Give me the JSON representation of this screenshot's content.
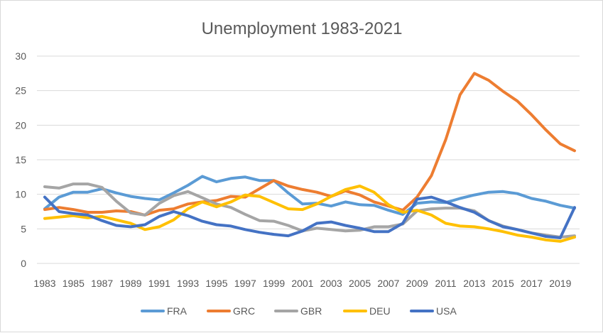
{
  "chart_data": {
    "type": "line",
    "title": "Unemployment 1983-2021",
    "xlabel": "",
    "ylabel": "",
    "ylim": [
      0,
      30
    ],
    "yticks": [
      0,
      5,
      10,
      15,
      20,
      25,
      30
    ],
    "grid": "horizontal",
    "legend": "bottom",
    "x": [
      1983,
      1984,
      1985,
      1986,
      1987,
      1988,
      1989,
      1990,
      1991,
      1992,
      1993,
      1994,
      1995,
      1996,
      1997,
      1998,
      1999,
      2000,
      2001,
      2002,
      2003,
      2004,
      2005,
      2006,
      2007,
      2008,
      2009,
      2010,
      2011,
      2012,
      2013,
      2014,
      2015,
      2016,
      2017,
      2018,
      2019,
      2020
    ],
    "xtick_labels": [
      "1983",
      "1985",
      "1987",
      "1989",
      "1991",
      "1993",
      "1995",
      "1997",
      "1999",
      "2001",
      "2003",
      "2005",
      "2007",
      "2009",
      "2011",
      "2013",
      "2015",
      "2017",
      "2019"
    ],
    "series": [
      {
        "name": "FRA",
        "color": "#5b9bd5",
        "values": [
          7.9,
          9.6,
          10.3,
          10.3,
          10.8,
          10.2,
          9.7,
          9.4,
          9.2,
          10.2,
          11.3,
          12.6,
          11.8,
          12.3,
          12.5,
          12.0,
          12.0,
          10.2,
          8.6,
          8.7,
          8.3,
          8.9,
          8.5,
          8.4,
          7.7,
          7.1,
          8.7,
          8.9,
          8.8,
          9.4,
          9.9,
          10.3,
          10.4,
          10.1,
          9.4,
          9.0,
          8.4,
          8.0
        ]
      },
      {
        "name": "GRC",
        "color": "#ed7d31",
        "values": [
          7.8,
          8.1,
          7.8,
          7.4,
          7.4,
          7.6,
          7.5,
          7.0,
          7.7,
          7.9,
          8.6,
          8.9,
          9.1,
          9.7,
          9.6,
          10.8,
          12.0,
          11.2,
          10.7,
          10.3,
          9.7,
          10.5,
          9.9,
          8.9,
          8.3,
          7.7,
          9.6,
          12.7,
          17.9,
          24.4,
          27.5,
          26.5,
          24.9,
          23.5,
          21.5,
          19.3,
          17.3,
          16.3
        ]
      },
      {
        "name": "GBR",
        "color": "#a5a5a5",
        "values": [
          11.1,
          10.9,
          11.5,
          11.5,
          11.0,
          9.0,
          7.3,
          7.0,
          8.7,
          9.8,
          10.4,
          9.5,
          8.6,
          8.1,
          7.1,
          6.2,
          6.1,
          5.5,
          4.7,
          5.1,
          4.9,
          4.7,
          4.8,
          5.3,
          5.3,
          5.7,
          7.6,
          7.9,
          8.0,
          8.0,
          7.6,
          6.2,
          5.4,
          4.9,
          4.4,
          4.1,
          3.8,
          4.0
        ]
      },
      {
        "name": "DEU",
        "color": "#ffc000",
        "values": [
          6.5,
          6.7,
          6.9,
          6.6,
          6.8,
          6.3,
          5.8,
          4.9,
          5.3,
          6.3,
          7.9,
          8.9,
          8.2,
          8.9,
          9.9,
          9.7,
          8.8,
          7.9,
          7.8,
          8.6,
          9.7,
          10.7,
          11.2,
          10.3,
          8.5,
          7.4,
          7.7,
          7.0,
          5.8,
          5.4,
          5.3,
          5.0,
          4.6,
          4.1,
          3.8,
          3.4,
          3.2,
          3.8
        ]
      },
      {
        "name": "USA",
        "color": "#4472c4",
        "values": [
          9.6,
          7.5,
          7.2,
          7.0,
          6.2,
          5.5,
          5.3,
          5.6,
          6.8,
          7.5,
          6.9,
          6.1,
          5.6,
          5.4,
          4.9,
          4.5,
          4.2,
          4.0,
          4.7,
          5.8,
          6.0,
          5.5,
          5.1,
          4.6,
          4.6,
          5.8,
          9.3,
          9.6,
          8.9,
          8.1,
          7.4,
          6.2,
          5.3,
          4.9,
          4.4,
          3.9,
          3.7,
          8.1
        ]
      }
    ]
  }
}
